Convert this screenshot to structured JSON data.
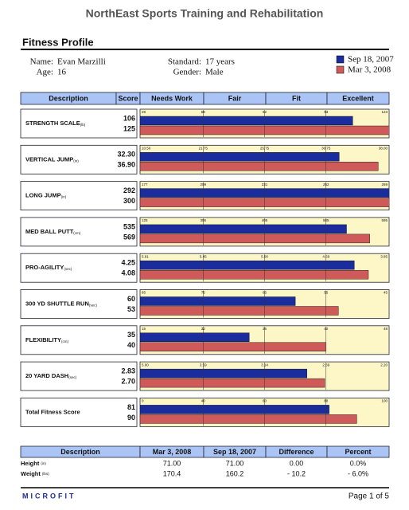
{
  "header": {
    "company": "NorthEast Sports Training and Rehabilitation",
    "title": "Fitness Profile"
  },
  "client": {
    "name_label": "Name:",
    "name": "Evan Marzilli",
    "age_label": "Age:",
    "age": "16",
    "standard_label": "Standard:",
    "standard": "17 years",
    "gender_label": "Gender:",
    "gender": "Male"
  },
  "legend": [
    {
      "name": "Sep 18, 2007",
      "color": "#1b2c9c"
    },
    {
      "name": "Mar 3, 2008",
      "color": "#cf5a5a"
    }
  ],
  "columns": [
    "Description",
    "Score",
    "Needs Work",
    "Fair",
    "Fit",
    "Excellent"
  ],
  "tests": [
    {
      "name": "STRENGTH SCALE",
      "unit": "(lb)",
      "scores": [
        106,
        125
      ],
      "ticks": [
        28,
        59,
        82,
        93,
        123
      ]
    },
    {
      "name": "VERTICAL JUMP",
      "unit": "(in)",
      "scores": [
        32.3,
        36.9
      ],
      "score_labels": [
        "32.30",
        "36.90"
      ],
      "ticks": [
        {
          "value": 10.5,
          "label": "10.50"
        },
        21.75,
        25.75,
        30.75,
        {
          "value": 38,
          "label": "38.00"
        }
      ]
    },
    {
      "name": "LONG JUMP",
      "unit": "(in)",
      "scores": [
        292,
        300
      ],
      "ticks": [
        177,
        209,
        231,
        252,
        269
      ]
    },
    {
      "name": "MED BALL PUTT",
      "unit": "(cm)",
      "scores": [
        535,
        569
      ],
      "ticks": [
        125,
        305,
        405,
        505,
        595
      ]
    },
    {
      "name": "PRO-AGILITY",
      "unit": "(sec)",
      "scores": [
        4.25,
        4.08
      ],
      "ticks": [
        5.91,
        5.45,
        {
          "value": 5,
          "label": "5.00"
        },
        4.59,
        3.85
      ]
    },
    {
      "name": "300 YD SHUTTLE RUN",
      "unit": "(sec)",
      "scores": [
        60,
        53
      ],
      "ticks": [
        85,
        75,
        65,
        55,
        45
      ]
    },
    {
      "name": "FLEXIBILITY",
      "unit": "(cm)",
      "scores": [
        35,
        40
      ],
      "ticks": [
        15,
        32,
        36,
        40,
        48
      ]
    },
    {
      "name": "20 YARD DASH",
      "unit": "(sec)",
      "scores": [
        2.83,
        2.7
      ],
      "score_labels": [
        "2.83",
        "2.70"
      ],
      "ticks": [
        {
          "value": 5,
          "label": "5.00"
        },
        3.59,
        3.14,
        2.69,
        {
          "value": 2.2,
          "label": "2.20"
        }
      ]
    },
    {
      "name": "Total Fitness Score",
      "scores": [
        81,
        90
      ],
      "ticks": [
        0,
        40,
        60,
        80,
        100
      ]
    }
  ],
  "summary": {
    "columns": [
      "Description",
      "Mar 3, 2008",
      "Sep 18, 2007",
      "Difference",
      "Percent"
    ],
    "rows": [
      {
        "name": "Height",
        "unit": "(in)",
        "cells": [
          "71.00",
          "71.00",
          "0.00",
          "0.0%"
        ]
      },
      {
        "name": "Weight",
        "unit": "(lbs)",
        "cells": [
          "170.4",
          "160.2",
          "- 10.2",
          "- 6.0%"
        ]
      }
    ]
  },
  "footer": {
    "brand": "MICROFIT",
    "page": "Page 1 of 5"
  }
}
